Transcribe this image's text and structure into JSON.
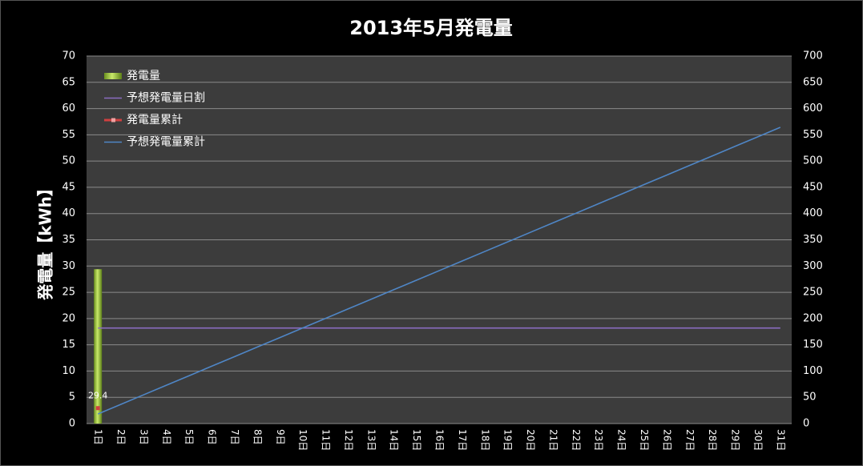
{
  "chart_data": {
    "type": "bar",
    "title": "2013年5月発電量",
    "y_label": "発電量【kWh】",
    "categories": [
      "1日",
      "2日",
      "3日",
      "4日",
      "5日",
      "6日",
      "7日",
      "8日",
      "9日",
      "10日",
      "11日",
      "12日",
      "13日",
      "14日",
      "15日",
      "16日",
      "17日",
      "18日",
      "19日",
      "20日",
      "21日",
      "22日",
      "23日",
      "24日",
      "25日",
      "26日",
      "27日",
      "28日",
      "29日",
      "30日",
      "31日"
    ],
    "series": [
      {
        "name": "発電量",
        "type": "bar",
        "color": "#9bc53d",
        "values": [
          29.4,
          null,
          null,
          null,
          null,
          null,
          null,
          null,
          null,
          null,
          null,
          null,
          null,
          null,
          null,
          null,
          null,
          null,
          null,
          null,
          null,
          null,
          null,
          null,
          null,
          null,
          null,
          null,
          null,
          null,
          null
        ]
      },
      {
        "name": "予想発電量日割",
        "type": "line",
        "color": "#8a6cc0",
        "values": [
          18.2,
          18.2,
          18.2,
          18.2,
          18.2,
          18.2,
          18.2,
          18.2,
          18.2,
          18.2,
          18.2,
          18.2,
          18.2,
          18.2,
          18.2,
          18.2,
          18.2,
          18.2,
          18.2,
          18.2,
          18.2,
          18.2,
          18.2,
          18.2,
          18.2,
          18.2,
          18.2,
          18.2,
          18.2,
          18.2,
          18.2
        ]
      },
      {
        "name": "発電量累計",
        "type": "line",
        "axis": "y2",
        "marker": true,
        "data_labels": true,
        "color": "#d04040",
        "values": [
          29.4,
          null,
          null,
          null,
          null,
          null,
          null,
          null,
          null,
          null,
          null,
          null,
          null,
          null,
          null,
          null,
          null,
          null,
          null,
          null,
          null,
          null,
          null,
          null,
          null,
          null,
          null,
          null,
          null,
          null,
          null
        ]
      },
      {
        "name": "予想発電量累計",
        "type": "line",
        "axis": "y2",
        "color": "#4f86c6",
        "values": [
          18.2,
          36.4,
          54.6,
          72.8,
          91,
          109.2,
          127.4,
          145.6,
          163.8,
          182,
          200.2,
          218.4,
          236.6,
          254.8,
          273,
          291.2,
          309.4,
          327.6,
          345.8,
          364,
          382.2,
          400.4,
          418.6,
          436.8,
          455,
          473.2,
          491.4,
          509.6,
          527.8,
          546,
          564.2
        ]
      }
    ],
    "ylim": [
      0,
      70
    ],
    "yticks": [
      0,
      5,
      10,
      15,
      20,
      25,
      30,
      35,
      40,
      45,
      50,
      55,
      60,
      65,
      70
    ],
    "y2lim": [
      0,
      700
    ],
    "y2ticks": [
      0,
      50,
      100,
      150,
      200,
      250,
      300,
      350,
      400,
      450,
      500,
      550,
      600,
      650,
      700
    ],
    "grid": true,
    "legend": "top-left"
  }
}
